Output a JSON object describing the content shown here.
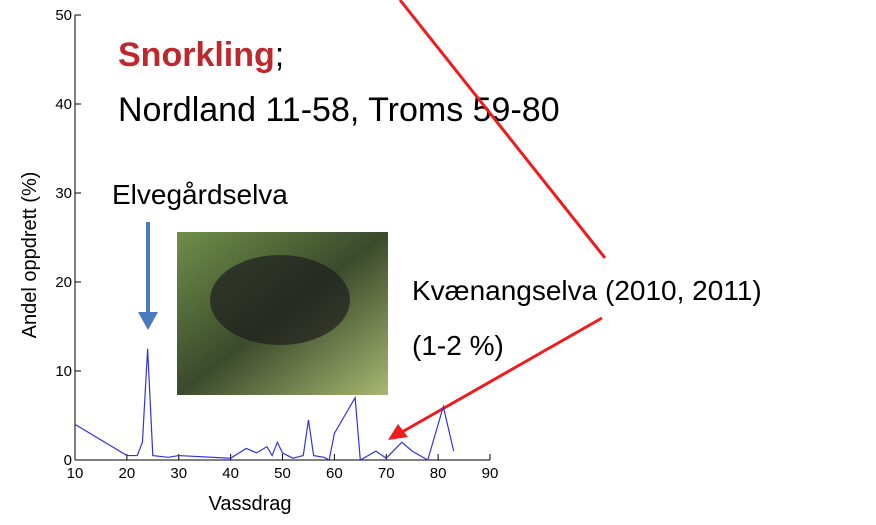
{
  "chart_data": {
    "type": "line",
    "title": [
      "Snorkling",
      ";"
    ],
    "subtitle": "Nordland 11-58, Troms 59-80",
    "annotations": [
      "Elvegårdselva",
      "Kvænangselva (2010, 2011)",
      "(1-2 %)"
    ],
    "x_label": "Vassdrag",
    "y_label": "Andel oppdrett (%)",
    "x": [
      10,
      20,
      22,
      23,
      24,
      25,
      28,
      30,
      40,
      43,
      45,
      47,
      48,
      49,
      50,
      52,
      54,
      55,
      56,
      58,
      59,
      60,
      64,
      65,
      68,
      70,
      73,
      75,
      78,
      81,
      83
    ],
    "series": [
      {
        "color": "#3333dd",
        "values": [
          4,
          0.5,
          0.5,
          2,
          12.5,
          0.5,
          0.3,
          0.5,
          0.2,
          1.3,
          0.8,
          1.5,
          0.5,
          2,
          0.8,
          0.2,
          0.5,
          4.5,
          0.5,
          0.3,
          0,
          3,
          7,
          0,
          1,
          0.2,
          2,
          1,
          0,
          6,
          1
        ]
      }
    ],
    "xlim": [
      10,
      90
    ],
    "ylim": [
      0,
      50
    ],
    "xticks": [
      10,
      20,
      30,
      40,
      50,
      60,
      70,
      80,
      90
    ],
    "yticks": [
      0,
      10,
      20,
      30,
      40,
      50
    ]
  }
}
